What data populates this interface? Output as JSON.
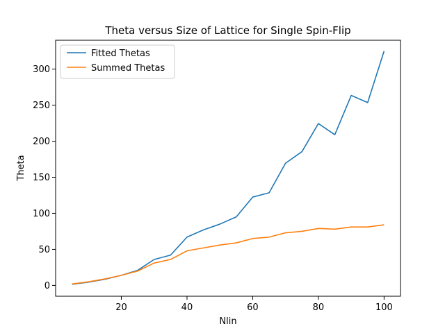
{
  "chart_data": {
    "type": "line",
    "title": "Theta versus Size of Lattice for Single Spin-Flip",
    "xlabel": "Nlin",
    "ylabel": "Theta",
    "xlim": [
      0,
      105
    ],
    "ylim": [
      -15,
      340
    ],
    "xticks": [
      20,
      40,
      60,
      80,
      100
    ],
    "yticks": [
      0,
      50,
      100,
      150,
      200,
      250,
      300
    ],
    "grid": false,
    "legend_position": "top-left",
    "x": [
      5,
      10,
      15,
      20,
      25,
      30,
      35,
      40,
      45,
      50,
      55,
      60,
      65,
      70,
      75,
      80,
      85,
      90,
      95,
      100
    ],
    "series": [
      {
        "name": "Fitted Thetas",
        "color": "#1f77b4",
        "values": [
          1.5,
          4.5,
          8.5,
          14,
          21,
          36,
          42,
          67,
          77,
          85,
          95,
          122.5,
          128.5,
          169.5,
          185.5,
          224.5,
          209,
          263.5,
          253.5,
          325
        ]
      },
      {
        "name": "Summed Thetas",
        "color": "#ff7f0e",
        "values": [
          2,
          5,
          9,
          14,
          20,
          31,
          36,
          48,
          52,
          56,
          59,
          65,
          67,
          73,
          75,
          79,
          78,
          81,
          81,
          84
        ]
      }
    ]
  }
}
